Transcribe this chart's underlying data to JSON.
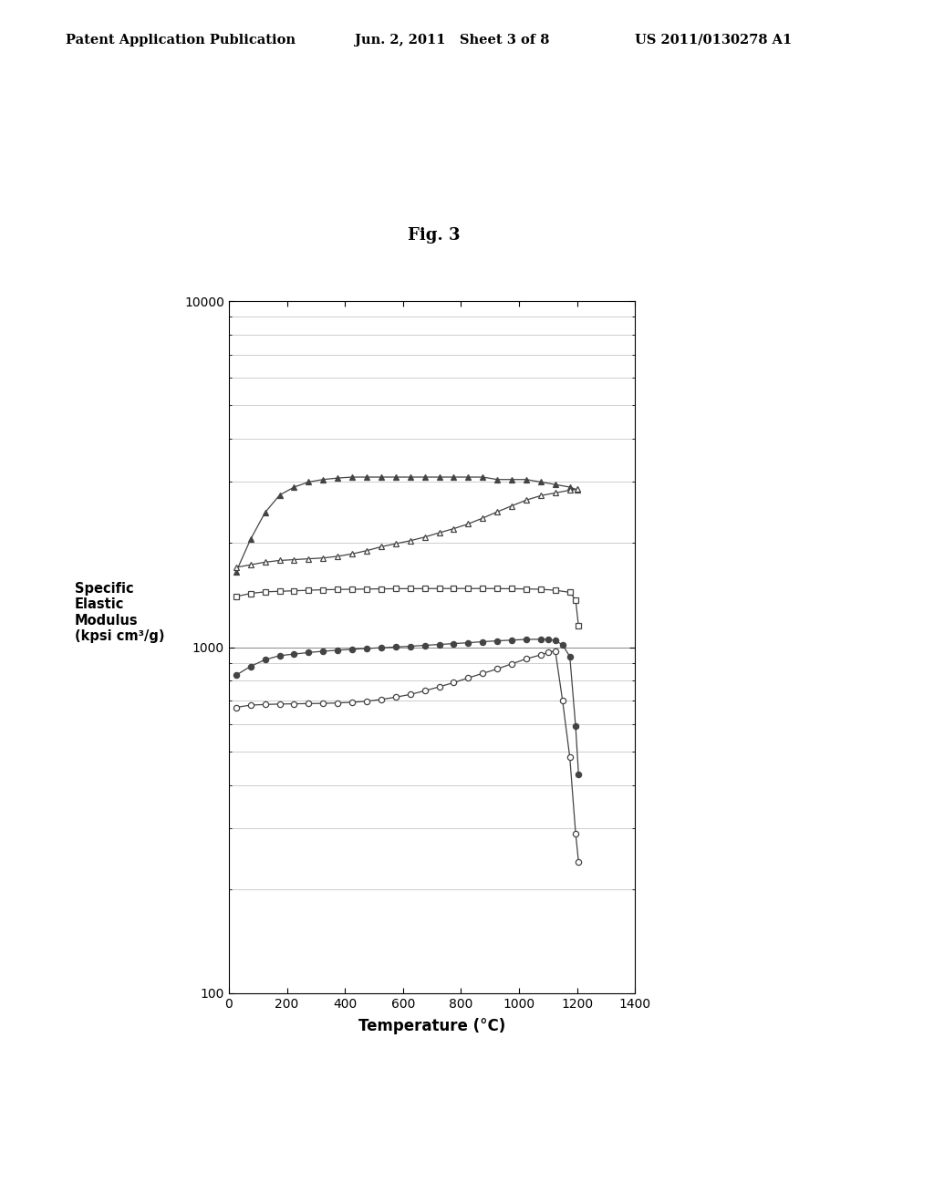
{
  "title": "Fig. 3",
  "xlabel": "Temperature (°C)",
  "ylabel": "Specific\nElastic\nModulus\n(kpsi cm³/g)",
  "xlim": [
    0,
    1400
  ],
  "ylim": [
    100,
    10000
  ],
  "header_left": "Patent Application Publication",
  "header_mid": "Jun. 2, 2011   Sheet 3 of 8",
  "header_right": "US 2011/0130278 A1",
  "series": [
    {
      "name": "filled_triangle",
      "x": [
        25,
        75,
        125,
        175,
        225,
        275,
        325,
        375,
        425,
        475,
        525,
        575,
        625,
        675,
        725,
        775,
        825,
        875,
        925,
        975,
        1025,
        1075,
        1125,
        1175,
        1200
      ],
      "y": [
        1650,
        2050,
        2450,
        2750,
        2900,
        3000,
        3050,
        3080,
        3100,
        3100,
        3100,
        3100,
        3100,
        3100,
        3100,
        3100,
        3100,
        3100,
        3050,
        3050,
        3050,
        3000,
        2950,
        2900,
        2850
      ],
      "marker": "^",
      "filled": true,
      "color": "#444444"
    },
    {
      "name": "open_triangle",
      "x": [
        25,
        75,
        125,
        175,
        225,
        275,
        325,
        375,
        425,
        475,
        525,
        575,
        625,
        675,
        725,
        775,
        825,
        875,
        925,
        975,
        1025,
        1075,
        1125,
        1175,
        1200
      ],
      "y": [
        1700,
        1730,
        1760,
        1780,
        1790,
        1800,
        1810,
        1830,
        1860,
        1900,
        1950,
        1990,
        2030,
        2080,
        2140,
        2200,
        2270,
        2360,
        2460,
        2560,
        2660,
        2740,
        2790,
        2840,
        2860
      ],
      "marker": "^",
      "filled": false,
      "color": "#444444"
    },
    {
      "name": "open_square",
      "x": [
        25,
        75,
        125,
        175,
        225,
        275,
        325,
        375,
        425,
        475,
        525,
        575,
        625,
        675,
        725,
        775,
        825,
        875,
        925,
        975,
        1025,
        1075,
        1125,
        1175,
        1195,
        1205
      ],
      "y": [
        1400,
        1430,
        1445,
        1450,
        1455,
        1460,
        1465,
        1468,
        1470,
        1472,
        1474,
        1475,
        1476,
        1476,
        1477,
        1477,
        1477,
        1477,
        1476,
        1475,
        1473,
        1470,
        1460,
        1440,
        1370,
        1150
      ],
      "marker": "s",
      "filled": false,
      "color": "#444444"
    },
    {
      "name": "filled_circle",
      "x": [
        25,
        75,
        125,
        175,
        225,
        275,
        325,
        375,
        425,
        475,
        525,
        575,
        625,
        675,
        725,
        775,
        825,
        875,
        925,
        975,
        1025,
        1075,
        1100,
        1125,
        1150,
        1175,
        1195,
        1205
      ],
      "y": [
        830,
        880,
        920,
        945,
        955,
        965,
        973,
        980,
        986,
        991,
        996,
        1001,
        1006,
        1012,
        1018,
        1024,
        1030,
        1037,
        1043,
        1048,
        1053,
        1054,
        1053,
        1045,
        1015,
        940,
        590,
        430
      ],
      "marker": "o",
      "filled": true,
      "color": "#444444"
    },
    {
      "name": "open_circle",
      "x": [
        25,
        75,
        125,
        175,
        225,
        275,
        325,
        375,
        425,
        475,
        525,
        575,
        625,
        675,
        725,
        775,
        825,
        875,
        925,
        975,
        1025,
        1075,
        1100,
        1125,
        1150,
        1175,
        1195,
        1205
      ],
      "y": [
        670,
        680,
        683,
        685,
        686,
        687,
        688,
        690,
        693,
        698,
        706,
        717,
        730,
        748,
        768,
        790,
        815,
        840,
        865,
        895,
        925,
        950,
        965,
        975,
        700,
        480,
        290,
        240
      ],
      "marker": "o",
      "filled": false,
      "color": "#444444"
    }
  ]
}
